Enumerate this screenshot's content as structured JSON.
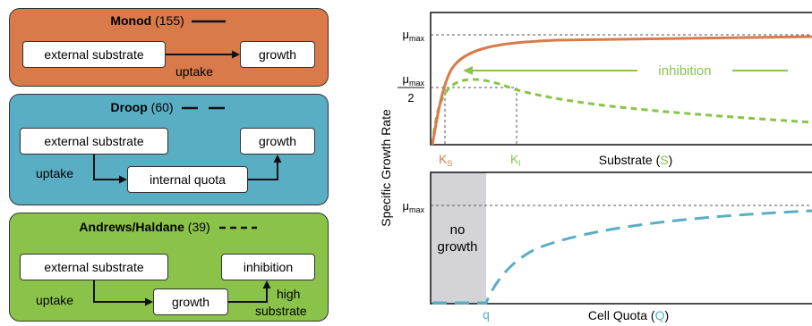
{
  "panels": {
    "monod": {
      "name": "Monod",
      "count": "(155)",
      "external": "external substrate",
      "growth": "growth",
      "uptake": "uptake"
    },
    "droop": {
      "name": "Droop",
      "count": "(60)",
      "external": "external substrate",
      "growth": "growth",
      "quota": "internal quota",
      "uptake": "uptake"
    },
    "andrews": {
      "name": "Andrews/Haldane",
      "count": "(39)",
      "external": "external substrate",
      "inhibition": "inhibition",
      "growth": "growth",
      "uptake": "uptake",
      "high": "high",
      "substrate": "substrate"
    }
  },
  "colors": {
    "monod": "#d97a4a",
    "droop": "#5aaec4",
    "andrews": "#8bc34a",
    "grey": "#d3d3d8"
  },
  "plot": {
    "ylabel": "Specific Growth Rate",
    "mu": "μ",
    "max": "max",
    "two": "2",
    "top": {
      "xlabel_pre": "Substrate (",
      "xlabel_sym": "S",
      "xlabel_post": ")",
      "ks_k": "K",
      "ks_sub": "S",
      "ki_k": "K",
      "ki_sub": "I",
      "inhibition": "inhibition"
    },
    "bottom": {
      "xlabel_pre": "Cell Quota (",
      "xlabel_sym": "Q",
      "xlabel_post": ")",
      "no": "no",
      "growth": "growth",
      "q": "q"
    }
  },
  "chart_data": [
    {
      "type": "line",
      "xlabel": "Substrate (S)",
      "ylabel": "Specific Growth Rate",
      "series": [
        {
          "name": "Monod",
          "style": "solid",
          "color": "#d97a4a",
          "x": [
            0,
            0.1,
            0.25,
            0.5,
            1,
            2,
            3,
            4,
            5,
            6,
            8,
            10,
            12,
            14
          ],
          "y": [
            0,
            0.14,
            0.28,
            0.44,
            0.62,
            0.77,
            0.83,
            0.87,
            0.89,
            0.91,
            0.93,
            0.94,
            0.95,
            0.96
          ]
        },
        {
          "name": "Andrews/Haldane",
          "style": "dashed",
          "color": "#8bc34a",
          "x": [
            0,
            0.3,
            0.6,
            1,
            1.5,
            2,
            3,
            4,
            5,
            6,
            8,
            10,
            12,
            14
          ],
          "y": [
            0,
            0.25,
            0.42,
            0.52,
            0.55,
            0.54,
            0.5,
            0.46,
            0.43,
            0.4,
            0.35,
            0.32,
            0.29,
            0.27
          ]
        }
      ],
      "annotations": [
        "μmax",
        "μmax/2",
        "KS",
        "KI",
        "inhibition"
      ]
    },
    {
      "type": "line",
      "xlabel": "Cell Quota (Q)",
      "series": [
        {
          "name": "Droop",
          "style": "dashed",
          "color": "#5aaec4",
          "x": [
            0,
            1,
            1.05,
            1.2,
            1.5,
            2,
            3,
            4,
            5,
            6,
            7
          ],
          "y": [
            0,
            0,
            0.05,
            0.17,
            0.33,
            0.5,
            0.67,
            0.75,
            0.8,
            0.83,
            0.86
          ]
        }
      ],
      "annotations": [
        "μmax",
        "no growth",
        "q"
      ]
    }
  ]
}
